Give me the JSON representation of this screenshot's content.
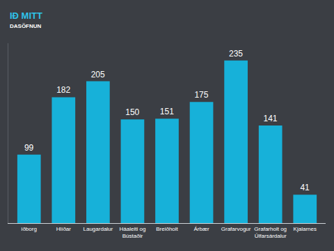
{
  "chart_data": {
    "type": "bar",
    "title": "IÐ MITT",
    "subtitle": "DASÖFNUN",
    "categories": [
      "iðborg",
      "Hlíðar",
      "Laugardalur",
      "Háaleiti og Bústaðir",
      "Breiðholt",
      "Árbær",
      "Grafarvogur",
      "Grafarholt og Úlfarsárdalur",
      "Kjalarnes"
    ],
    "values": [
      99,
      182,
      205,
      150,
      151,
      175,
      235,
      141,
      41
    ],
    "color": "#17b1d9",
    "ylim": [
      0,
      260
    ],
    "grid": false,
    "data_labels": true,
    "tick_labels": "x"
  }
}
